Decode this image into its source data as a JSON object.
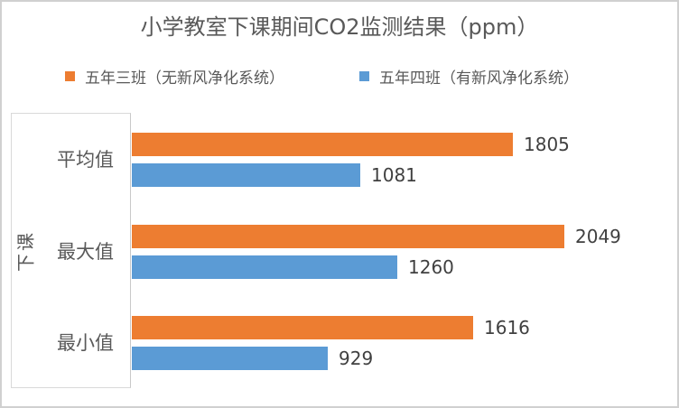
{
  "chart_data": {
    "type": "bar",
    "orientation": "horizontal",
    "title": "小学教室下课期间CO2监测结果（ppm）",
    "categories": [
      "平均值",
      "最大值",
      "最小值"
    ],
    "series": [
      {
        "name": "五年三班（无新风净化系统）",
        "color": "#ED7D31",
        "values": [
          1805,
          2049,
          1616
        ]
      },
      {
        "name": "五年四班（有新风净化系统）",
        "color": "#5B9BD5",
        "values": [
          1081,
          1260,
          929
        ]
      }
    ],
    "ylabel": "下课",
    "xlabel": "",
    "xlim": [
      0,
      2500
    ],
    "grid": false,
    "legend_position": "top",
    "data_labels": true,
    "colors": {
      "series1": "#ED7D31",
      "series2": "#5B9BD5",
      "title_text": "#595959",
      "value_label_text": "#404040",
      "chart_border": "#D0D0D0",
      "axis_box_border": "#D9D9D9"
    }
  }
}
